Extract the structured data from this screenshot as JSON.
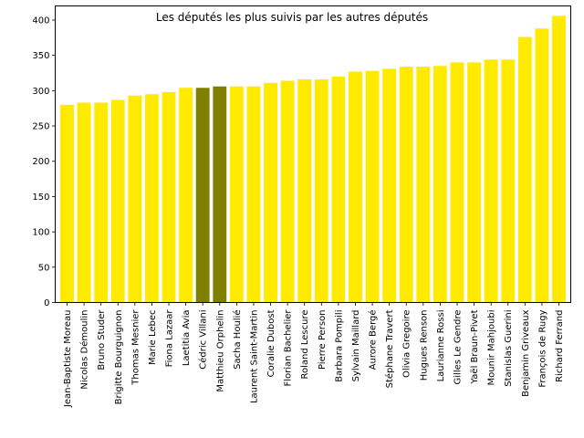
{
  "chart_data": {
    "type": "bar",
    "title": "Les députés les plus suivis par les autres députés",
    "xlabel": "",
    "ylabel": "",
    "ylim": [
      0,
      420
    ],
    "yticks": [
      0,
      50,
      100,
      150,
      200,
      250,
      300,
      350,
      400
    ],
    "grid": false,
    "categories": [
      "Jean-Baptiste Moreau",
      "Nicolas Démoulin",
      "Bruno Studer",
      "Brigitte Bourguignon",
      "Thomas Mesnier",
      "Marie Lebec",
      "Fiona Lazaar",
      "Laetitia Avia",
      "Cédric Villani",
      "Matthieu Orphelin",
      "Sacha Houlié",
      "Laurent Saint-Martin",
      "Coralie Dubost",
      "Florian Bachelier",
      "Roland Lescure",
      "Pierre Person",
      "Barbara Pompili",
      "Sylvain Maillard",
      "Aurore Bergé",
      "Stéphane Travert",
      "Olivia Gregoire",
      "Hugues Renson",
      "Laurianne Rossi",
      "Gilles Le Gendre",
      "Yaël Braun-Pivet",
      "Mounir Mahjoubi",
      "Stanislas Guerini",
      "Benjamin Griveaux",
      "François de Rugy",
      "Richard Ferrand"
    ],
    "values": [
      280,
      283,
      283,
      287,
      293,
      295,
      298,
      304,
      304,
      306,
      306,
      306,
      311,
      314,
      316,
      316,
      320,
      327,
      328,
      331,
      334,
      334,
      335,
      340,
      340,
      344,
      344,
      376,
      388,
      406
    ],
    "colors": {
      "default": "#ffea00",
      "highlight": "#808000",
      "highlighted": [
        "Cédric Villani",
        "Matthieu Orphelin"
      ]
    }
  }
}
